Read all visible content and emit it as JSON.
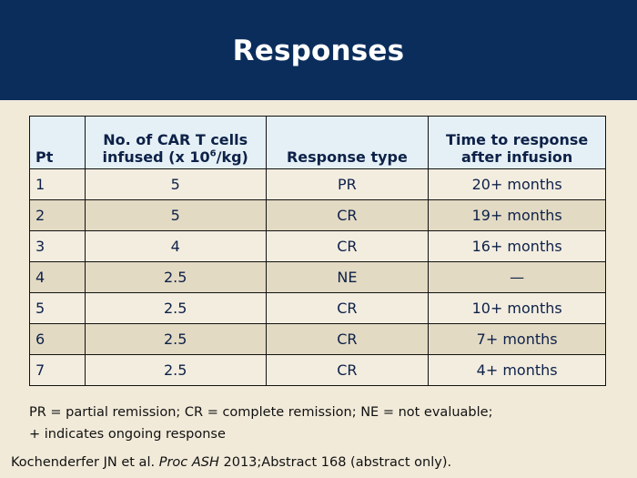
{
  "slide": {
    "title": "Responses"
  },
  "table": {
    "headers": {
      "pt": "Pt",
      "cells_line1": "No. of CAR T cells",
      "cells_line2_prefix": "infused (x 10",
      "cells_line2_sup": "6",
      "cells_line2_suffix": "/kg)",
      "response_type": "Response type",
      "time_line1": "Time to response",
      "time_line2": "after infusion"
    },
    "rows": [
      {
        "pt": "1",
        "cells": "5",
        "response": "PR",
        "time": "20+ months"
      },
      {
        "pt": "2",
        "cells": "5",
        "response": "CR",
        "time": "19+ months"
      },
      {
        "pt": "3",
        "cells": "4",
        "response": "CR",
        "time": "16+ months"
      },
      {
        "pt": "4",
        "cells": "2.5",
        "response": "NE",
        "time": "—"
      },
      {
        "pt": "5",
        "cells": "2.5",
        "response": "CR",
        "time": "10+ months"
      },
      {
        "pt": "6",
        "cells": "2.5",
        "response": "CR",
        "time": "7+ months"
      },
      {
        "pt": "7",
        "cells": "2.5",
        "response": "CR",
        "time": "4+ months"
      }
    ]
  },
  "footnote": {
    "line1": "PR = partial remission; CR = complete remission; NE = not evaluable;",
    "line2": "+ indicates ongoing response"
  },
  "citation": {
    "authors": "Kochenderfer JN et al. ",
    "journal": "Proc ASH",
    "rest": " 2013;Abstract 168 (abstract only)."
  },
  "colors": {
    "header_bg": "#0b2d5c",
    "slide_bg": "#f1ead9",
    "table_header_bg": "#e4f0f5",
    "row_light": "#f3ede0",
    "row_dark": "#e3dac4",
    "text": "#0d2148"
  }
}
